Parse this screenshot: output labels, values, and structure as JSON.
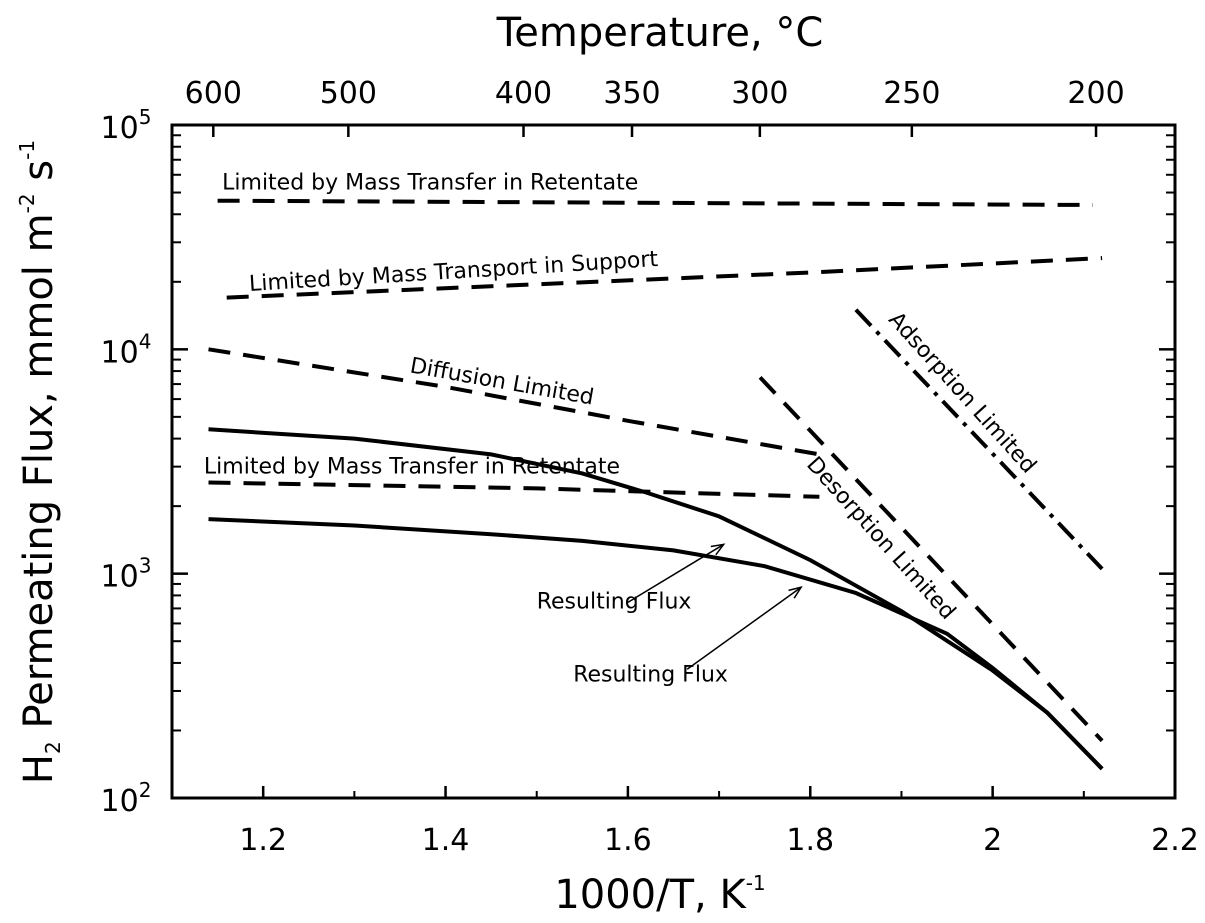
{
  "chart_data": {
    "type": "line",
    "title": "",
    "xlabel": "1000/T, K",
    "xlabel_exponent": "-1",
    "ylabel_main": "H",
    "ylabel_sub": "2",
    "ylabel_rest": " Permeating Flux, mmol m",
    "ylabel_exp1": "-2",
    "ylabel_s": " s",
    "ylabel_exp2": "-1",
    "top_xlabel": "Temperature, °C",
    "xlim": [
      1.1,
      2.2
    ],
    "ylim": [
      100,
      100000
    ],
    "yscale": "log",
    "grid": false,
    "x_ticks": [
      1.2,
      1.4,
      1.6,
      1.8,
      2.0,
      2.2
    ],
    "x_tick_labels": [
      "1.2",
      "1.4",
      "1.6",
      "1.8",
      "2",
      "2.2"
    ],
    "y_ticks": [
      {
        "value": 100,
        "base": "10",
        "exp": "2"
      },
      {
        "value": 1000,
        "base": "10",
        "exp": "3"
      },
      {
        "value": 10000,
        "base": "10",
        "exp": "4"
      },
      {
        "value": 100000,
        "base": "10",
        "exp": "5"
      }
    ],
    "top_ticks": [
      {
        "label": "600",
        "x": 1.1453
      },
      {
        "label": "500",
        "x": 1.2934
      },
      {
        "label": "400",
        "x": 1.4855
      },
      {
        "label": "350",
        "x": 1.6045
      },
      {
        "label": "300",
        "x": 1.7447
      },
      {
        "label": "250",
        "x": 1.9114
      },
      {
        "label": "200",
        "x": 2.1134
      }
    ],
    "series": [
      {
        "style": "dashed",
        "values": [
          [
            1.15,
            46000
          ],
          [
            2.11,
            44000
          ]
        ]
      },
      {
        "style": "dashed",
        "values": [
          [
            1.16,
            17000
          ],
          [
            1.5,
            19500
          ],
          [
            1.8,
            22000
          ],
          [
            2.12,
            25500
          ]
        ]
      },
      {
        "style": "dashed",
        "values": [
          [
            1.14,
            10000
          ],
          [
            1.4,
            6800
          ],
          [
            1.6,
            4800
          ],
          [
            1.81,
            3400
          ]
        ]
      },
      {
        "style": "dashed",
        "values": [
          [
            1.14,
            2550
          ],
          [
            1.5,
            2400
          ],
          [
            1.81,
            2200
          ]
        ]
      },
      {
        "style": "dashed",
        "values": [
          [
            1.745,
            7500
          ],
          [
            2.12,
            180
          ]
        ]
      },
      {
        "style": "dashdot",
        "values": [
          [
            1.85,
            15000
          ],
          [
            2.12,
            1050
          ]
        ]
      },
      {
        "style": "solid",
        "values": [
          [
            1.14,
            4400
          ],
          [
            1.3,
            4000
          ],
          [
            1.45,
            3400
          ],
          [
            1.55,
            2800
          ],
          [
            1.62,
            2300
          ],
          [
            1.7,
            1800
          ],
          [
            1.8,
            1150
          ],
          [
            1.9,
            680
          ],
          [
            2.0,
            370
          ],
          [
            2.06,
            240
          ],
          [
            2.12,
            135
          ]
        ]
      },
      {
        "style": "solid",
        "values": [
          [
            1.14,
            1750
          ],
          [
            1.3,
            1640
          ],
          [
            1.45,
            1500
          ],
          [
            1.55,
            1400
          ],
          [
            1.65,
            1270
          ],
          [
            1.75,
            1080
          ],
          [
            1.85,
            820
          ],
          [
            1.95,
            540
          ],
          [
            2.0,
            380
          ],
          [
            2.06,
            240
          ],
          [
            2.12,
            135
          ]
        ]
      }
    ],
    "annotations": [
      {
        "text": "Limited by Mass Transfer in Retentate",
        "x": 1.155,
        "y": 51500,
        "rotate": 0
      },
      {
        "text": "Limited by Mass Transport in Support",
        "x": 1.185,
        "y": 18200,
        "rotate": -3.5
      },
      {
        "text": "Diffusion Limited",
        "x": 1.36,
        "y": 7900,
        "rotate": 10
      },
      {
        "text": "Limited by Mass Transfer in Retentate",
        "x": 1.135,
        "y": 2800,
        "rotate": 0
      },
      {
        "text": "Adsorption Limited",
        "x": 1.885,
        "y": 13500,
        "rotate": 48
      },
      {
        "text": "Desorption Limited",
        "x": 1.795,
        "y": 3050,
        "rotate": 48
      },
      {
        "text": "Resulting Flux",
        "x": 1.5,
        "y": 700,
        "rotate": 0
      },
      {
        "text": "Resulting Flux",
        "x": 1.54,
        "y": 330,
        "rotate": 0
      }
    ],
    "arrows": [
      {
        "from": [
          1.6,
          745
        ],
        "to": [
          1.705,
          1350
        ]
      },
      {
        "from": [
          1.665,
          375
        ],
        "to": [
          1.79,
          870
        ]
      }
    ]
  }
}
